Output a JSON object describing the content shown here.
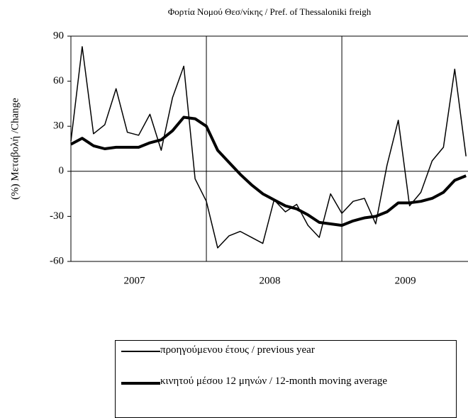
{
  "chart_data": {
    "type": "line",
    "title": "Φορτία Νομού Θεσ/νίκης  / Pref. of  Thessaloniki  freigh",
    "y_label": "(%) Μεταβολή /Change",
    "categories": [
      null,
      null,
      null,
      null,
      null,
      null,
      null,
      null,
      null,
      null,
      null,
      null,
      null,
      null,
      null,
      null,
      null,
      null,
      null,
      null,
      null,
      null,
      null,
      null,
      null,
      null,
      null,
      null,
      null,
      null,
      null,
      null,
      null,
      null,
      null,
      null
    ],
    "x_groups": [
      "2007",
      "2008",
      "2009"
    ],
    "series": [
      {
        "name": "προηγούμενου έτους / previous year",
        "color": "#000000",
        "width": 1.5,
        "values": [
          20,
          83,
          25,
          31,
          55,
          26,
          24,
          38,
          14,
          49,
          70,
          -5,
          -20,
          -51,
          -43,
          -40,
          -44,
          -48,
          -19,
          -27,
          -22,
          -36,
          -44,
          -15,
          -28,
          -20,
          -18,
          -35,
          4,
          34,
          -23,
          -14,
          7,
          16,
          68,
          10
        ]
      },
      {
        "name": "κινητού μέσου 12 μηνών / 12-month moving average",
        "color": "#000000",
        "width": 4,
        "values": [
          18,
          22,
          17,
          15,
          16,
          16,
          16,
          19,
          21,
          27,
          36,
          35,
          30,
          14,
          6,
          -2,
          -9,
          -15,
          -19,
          -23,
          -25,
          -29,
          -34,
          -35,
          -36,
          -33,
          -31,
          -30,
          -27,
          -21,
          -21,
          -20,
          -18,
          -14,
          -6,
          -3
        ]
      }
    ],
    "ylim": [
      -60,
      90
    ],
    "yticks": [
      -60,
      -30,
      0,
      30,
      60,
      90
    ]
  }
}
